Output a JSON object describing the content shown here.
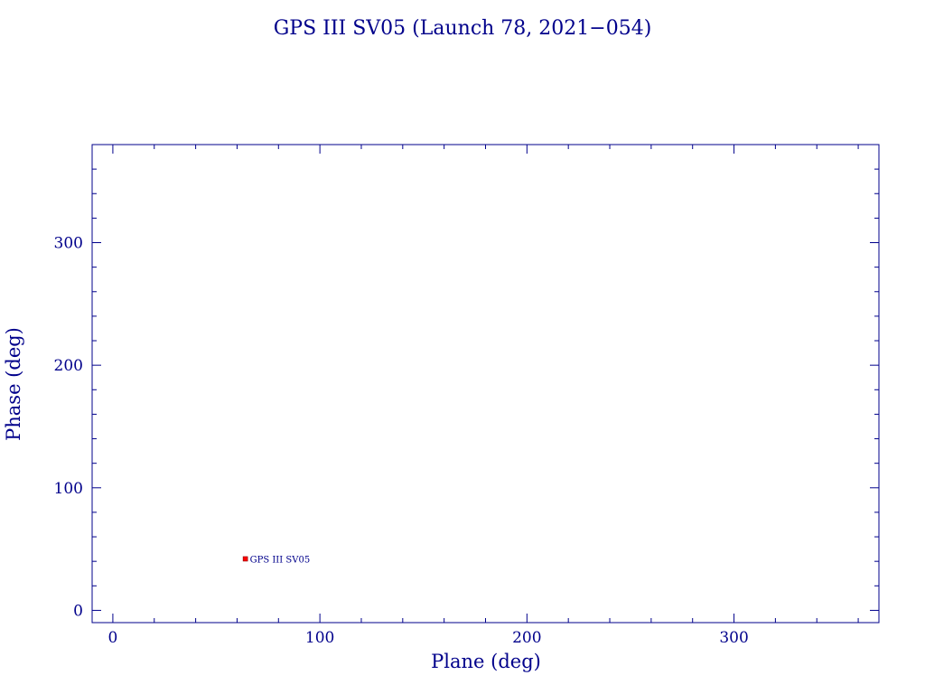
{
  "chart_data": {
    "type": "scatter",
    "title": "GPS III SV05 (Launch 78, 2021−054)",
    "xlabel": "Plane (deg)",
    "ylabel": "Phase (deg)",
    "xlim": [
      -10,
      370
    ],
    "ylim": [
      -10,
      380
    ],
    "xticks": [
      0,
      100,
      200,
      300
    ],
    "yticks": [
      0,
      100,
      200,
      300
    ],
    "x_minor_step": 20,
    "y_minor_step": 20,
    "grid": false,
    "series": [
      {
        "points": [
          {
            "x": 64,
            "y": 42,
            "label": "GPS III SV05"
          }
        ]
      }
    ]
  },
  "colors": {
    "axis": "#00008b",
    "text": "#00008b",
    "marker": "#ff0000"
  }
}
